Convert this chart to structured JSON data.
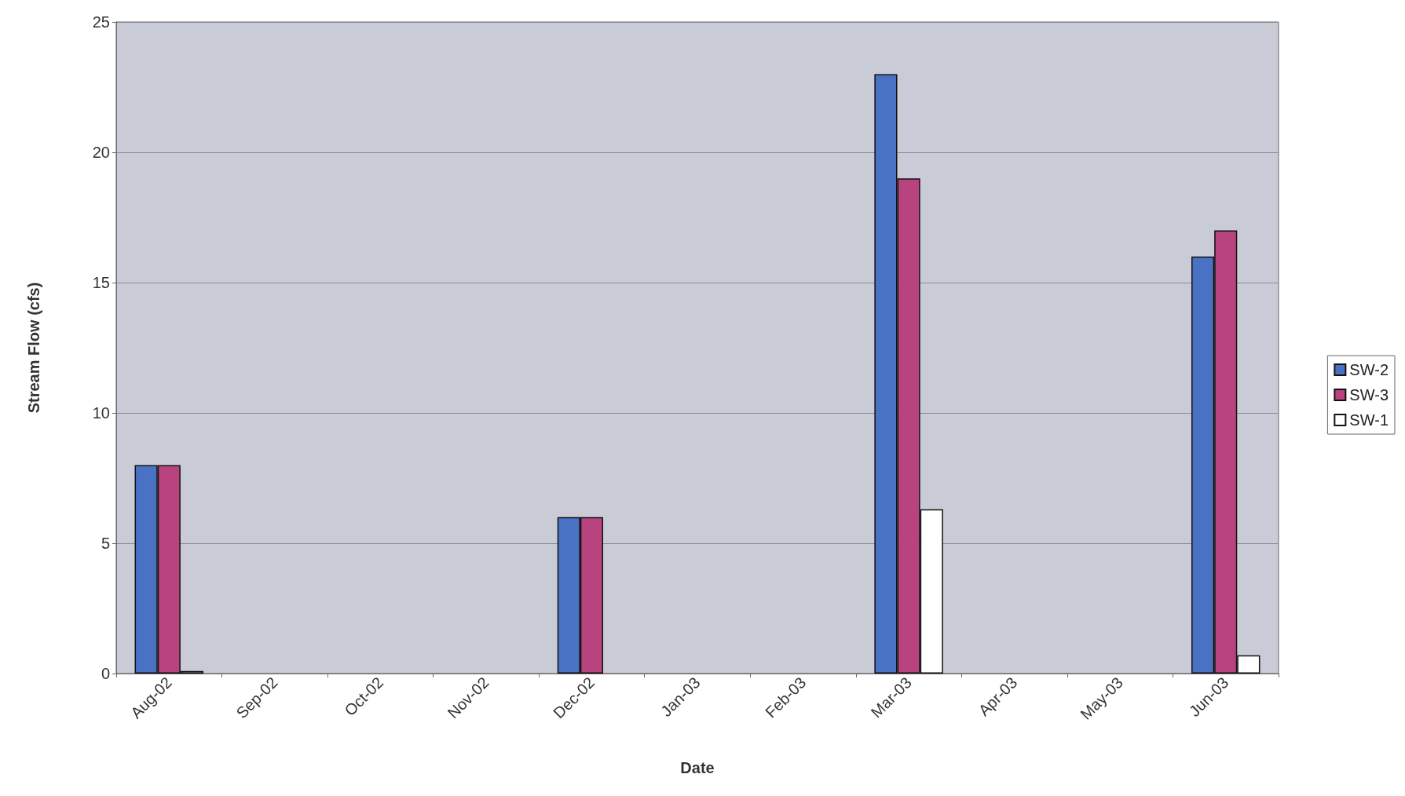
{
  "chart_data": {
    "type": "bar",
    "xlabel": "Date",
    "ylabel": "Stream Flow (cfs)",
    "categories": [
      "Aug-02",
      "Sep-02",
      "Oct-02",
      "Nov-02",
      "Dec-02",
      "Jan-03",
      "Feb-03",
      "Mar-03",
      "Apr-03",
      "May-03",
      "Jun-03"
    ],
    "series": [
      {
        "name": "SW-2",
        "color": "#4a72c4",
        "values": [
          8,
          null,
          null,
          null,
          6,
          null,
          null,
          23,
          null,
          null,
          16
        ]
      },
      {
        "name": "SW-3",
        "color": "#b8437f",
        "values": [
          8,
          null,
          null,
          null,
          6,
          null,
          null,
          19,
          null,
          null,
          17
        ]
      },
      {
        "name": "SW-1",
        "color": "#ffffff",
        "values": [
          0.1,
          null,
          null,
          null,
          null,
          null,
          null,
          6.3,
          null,
          null,
          0.7
        ]
      }
    ],
    "ylim": [
      0,
      25
    ],
    "yticks": [
      0,
      5,
      10,
      15,
      20,
      25
    ],
    "grid": "y",
    "legend": "right"
  }
}
